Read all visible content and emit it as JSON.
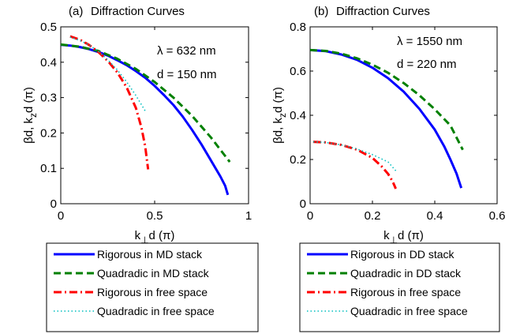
{
  "chart_data": [
    {
      "type": "line",
      "panel_label": "(a)",
      "title": "Diffraction Curves",
      "xlabel_main": "k",
      "xlabel_sub": "⊥",
      "xlabel_rest": "d (π)",
      "ylabel_main": "βd,  k",
      "ylabel_sub": "z",
      "ylabel_rest": "d (π)",
      "xlim": [
        0,
        1
      ],
      "ylim": [
        0,
        0.5
      ],
      "xticks": [
        0,
        0.5,
        1
      ],
      "xtick_labels": [
        "0",
        "0.5",
        "1"
      ],
      "yticks": [
        0,
        0.1,
        0.2,
        0.3,
        0.4,
        0.5
      ],
      "ytick_labels": [
        "0",
        "0.1",
        "0.2",
        "0.3",
        "0.4",
        "0.5"
      ],
      "grid": false,
      "annotations": [
        "λ = 632 nm",
        "d = 150 nm"
      ],
      "legend_position": "below",
      "series": [
        {
          "name": "Rigorous in MD stack",
          "color": "#0000ff",
          "dash": "solid",
          "x": [
            0,
            0.05,
            0.1,
            0.15,
            0.2,
            0.25,
            0.3,
            0.35,
            0.4,
            0.45,
            0.5,
            0.55,
            0.6,
            0.65,
            0.7,
            0.75,
            0.8,
            0.85,
            0.875,
            0.89
          ],
          "y": [
            0.449,
            0.447,
            0.443,
            0.437,
            0.429,
            0.419,
            0.406,
            0.392,
            0.375,
            0.356,
            0.333,
            0.307,
            0.279,
            0.246,
            0.208,
            0.167,
            0.122,
            0.077,
            0.051,
            0.025
          ]
        },
        {
          "name": "Quadradic in MD stack",
          "color": "#008000",
          "dash": "dashed",
          "x": [
            0,
            0.1,
            0.2,
            0.3,
            0.4,
            0.5,
            0.6,
            0.7,
            0.8,
            0.9
          ],
          "y": [
            0.45,
            0.444,
            0.432,
            0.41,
            0.381,
            0.344,
            0.3,
            0.248,
            0.187,
            0.118
          ]
        },
        {
          "name": "Rigorous in free space",
          "color": "#ff0000",
          "dash": "dashdot",
          "x": [
            0.05,
            0.1,
            0.15,
            0.2,
            0.25,
            0.3,
            0.35,
            0.4,
            0.43,
            0.45,
            0.465
          ],
          "y": [
            0.473,
            0.464,
            0.449,
            0.429,
            0.404,
            0.372,
            0.33,
            0.271,
            0.215,
            0.161,
            0.097
          ]
        },
        {
          "name": "Quadradic in free space",
          "color": "#00bfbf",
          "dash": "dotted",
          "x": [
            0.05,
            0.1,
            0.15,
            0.2,
            0.25,
            0.3,
            0.35,
            0.4,
            0.45
          ],
          "y": [
            0.471,
            0.462,
            0.449,
            0.431,
            0.407,
            0.379,
            0.345,
            0.306,
            0.262
          ]
        }
      ]
    },
    {
      "type": "line",
      "panel_label": "(b)",
      "title": "Diffraction Curves",
      "xlabel_main": "k",
      "xlabel_sub": "⊥",
      "xlabel_rest": "d (π)",
      "ylabel_main": "βd,  k",
      "ylabel_sub": "z",
      "ylabel_rest": "d (π)",
      "xlim": [
        0,
        0.6
      ],
      "ylim": [
        0,
        0.8
      ],
      "xticks": [
        0,
        0.2,
        0.4,
        0.6
      ],
      "xtick_labels": [
        "0",
        "0.2",
        "0.4",
        "0.6"
      ],
      "yticks": [
        0,
        0.2,
        0.4,
        0.6,
        0.8
      ],
      "ytick_labels": [
        "0",
        "0.2",
        "0.4",
        "0.6",
        "0.8"
      ],
      "grid": false,
      "annotations": [
        "λ = 1550 nm",
        "d = 220 nm"
      ],
      "legend_position": "below",
      "series": [
        {
          "name": "Rigorous in DD stack",
          "color": "#0000ff",
          "dash": "solid",
          "x": [
            0,
            0.05,
            0.1,
            0.15,
            0.2,
            0.25,
            0.3,
            0.35,
            0.4,
            0.43,
            0.45,
            0.47,
            0.485
          ],
          "y": [
            0.695,
            0.69,
            0.675,
            0.651,
            0.615,
            0.568,
            0.507,
            0.43,
            0.335,
            0.26,
            0.2,
            0.136,
            0.071
          ]
        },
        {
          "name": "Quadradic in DD stack",
          "color": "#008000",
          "dash": "dashed",
          "x": [
            0,
            0.05,
            0.1,
            0.15,
            0.2,
            0.25,
            0.3,
            0.35,
            0.4,
            0.45,
            0.49
          ],
          "y": [
            0.695,
            0.691,
            0.679,
            0.658,
            0.629,
            0.592,
            0.546,
            0.491,
            0.427,
            0.354,
            0.244
          ]
        },
        {
          "name": "Rigorous in free space",
          "color": "#ff0000",
          "dash": "dashdot",
          "x": [
            0.01,
            0.05,
            0.1,
            0.15,
            0.2,
            0.23,
            0.25,
            0.265,
            0.275
          ],
          "y": [
            0.28,
            0.277,
            0.266,
            0.245,
            0.207,
            0.168,
            0.135,
            0.1,
            0.068
          ]
        },
        {
          "name": "Quadradic in free space",
          "color": "#00bfbf",
          "dash": "dotted",
          "x": [
            0.01,
            0.05,
            0.1,
            0.15,
            0.2,
            0.25,
            0.275
          ],
          "y": [
            0.28,
            0.277,
            0.266,
            0.248,
            0.222,
            0.189,
            0.149
          ]
        }
      ]
    }
  ]
}
